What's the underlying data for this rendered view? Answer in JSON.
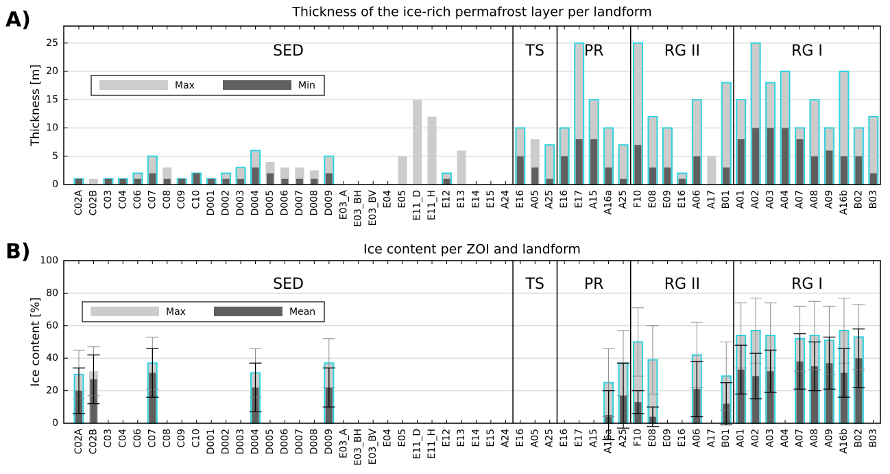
{
  "chart_data": [
    {
      "type": "bar",
      "panel_label": "A)",
      "title": "Thickness of the ice-rich permafrost layer per landform",
      "y_label": "Thickness [m]",
      "groups": [
        {
          "name": "SED",
          "categories": [
            "C02A",
            "C02B",
            "C03",
            "C04",
            "C06",
            "C07",
            "C08",
            "C09",
            "C10",
            "D001",
            "D002",
            "D003",
            "D004",
            "D005",
            "D006",
            "D007",
            "D008",
            "D009",
            "E03_A",
            "E03_BH",
            "E03_BV",
            "E04",
            "E05",
            "E11_D",
            "E11_H",
            "E12",
            "E13",
            "E14",
            "E15",
            "A24"
          ]
        },
        {
          "name": "TS",
          "categories": [
            "E16",
            "A05",
            "A25"
          ]
        },
        {
          "name": "PR",
          "categories": [
            "E16",
            "E17",
            "A15",
            "A16a",
            "A25"
          ]
        },
        {
          "name": "RG II",
          "categories": [
            "F10",
            "E08",
            "E09",
            "E16",
            "A06",
            "A17",
            "B01"
          ]
        },
        {
          "name": "RG I",
          "categories": [
            "A01",
            "A02",
            "A03",
            "A04",
            "A07",
            "A08",
            "A09",
            "A16b",
            "B02",
            "B03"
          ]
        }
      ],
      "series": [
        {
          "name": "Max",
          "color": "#cccccc",
          "values": [
            1,
            1,
            1,
            1,
            2,
            5,
            3,
            1,
            2,
            1,
            2,
            3,
            6,
            4,
            3,
            3,
            2.5,
            5,
            null,
            null,
            null,
            null,
            5,
            15,
            12,
            2,
            6,
            null,
            null,
            null,
            10,
            8,
            7,
            10,
            25,
            15,
            10,
            7,
            25,
            12,
            10,
            2,
            15,
            5,
            18,
            15,
            25,
            18,
            20,
            10,
            15,
            10,
            20,
            10,
            12
          ]
        },
        {
          "name": "Min",
          "color": "#5f5f5f",
          "values": [
            1,
            0,
            1,
            1,
            1,
            2,
            1,
            1,
            2,
            1,
            1,
            1,
            3,
            2,
            1,
            1,
            1,
            2,
            null,
            null,
            null,
            null,
            0,
            0,
            0,
            1,
            0,
            null,
            null,
            null,
            5,
            3,
            1,
            5,
            8,
            8,
            3,
            1,
            7,
            3,
            3,
            1,
            5,
            0,
            3,
            8,
            10,
            10,
            10,
            8,
            5,
            6,
            5,
            5,
            2
          ]
        }
      ],
      "outline_color": "#2fd3de",
      "outlined": [
        true,
        false,
        true,
        true,
        true,
        true,
        false,
        true,
        true,
        true,
        true,
        true,
        true,
        false,
        false,
        false,
        false,
        true,
        false,
        false,
        false,
        false,
        false,
        false,
        false,
        true,
        false,
        false,
        false,
        false,
        true,
        false,
        true,
        true,
        true,
        true,
        true,
        true,
        true,
        true,
        true,
        true,
        true,
        false,
        true,
        true,
        true,
        true,
        true,
        true,
        true,
        true,
        true,
        true,
        true
      ],
      "ylim": [
        0,
        28
      ],
      "yticks": [
        0,
        5,
        10,
        15,
        20,
        25
      ],
      "grid": true,
      "legend": "upper left"
    },
    {
      "type": "bar",
      "panel_label": "B)",
      "title": "Ice content per ZOI and landform",
      "y_label": "Ice content [%]",
      "groups": [
        {
          "name": "SED",
          "categories": [
            "C02A",
            "C02B",
            "C03",
            "C04",
            "C06",
            "C07",
            "C08",
            "C09",
            "C10",
            "D001",
            "D002",
            "D003",
            "D004",
            "D005",
            "D006",
            "D007",
            "D008",
            "D009",
            "E03_A",
            "E03_BH",
            "E03_BV",
            "E04",
            "E05",
            "E11_D",
            "E11_H",
            "E12",
            "E13",
            "E14",
            "E15",
            "A24"
          ]
        },
        {
          "name": "TS",
          "categories": [
            "E16",
            "A05",
            "A25"
          ]
        },
        {
          "name": "PR",
          "categories": [
            "E16",
            "E17",
            "A15",
            "A16a",
            "A25"
          ]
        },
        {
          "name": "RG II",
          "categories": [
            "F10",
            "E08",
            "E09",
            "E16",
            "A06",
            "A17",
            "B01"
          ]
        },
        {
          "name": "RG I",
          "categories": [
            "A01",
            "A02",
            "A03",
            "A04",
            "A07",
            "A08",
            "A09",
            "A16b",
            "B02",
            "B03"
          ]
        }
      ],
      "series": [
        {
          "name": "Max",
          "color": "#cccccc",
          "error_color": "#8c8c8c",
          "values": [
            30,
            32,
            null,
            null,
            null,
            37,
            null,
            null,
            null,
            null,
            null,
            null,
            31,
            null,
            null,
            null,
            null,
            37,
            null,
            null,
            null,
            null,
            null,
            null,
            null,
            null,
            null,
            null,
            null,
            null,
            null,
            null,
            null,
            null,
            null,
            null,
            25,
            37,
            50,
            39,
            null,
            null,
            42,
            null,
            29,
            54,
            57,
            54,
            null,
            52,
            54,
            51,
            57,
            53,
            null
          ],
          "errors": [
            15,
            15,
            null,
            null,
            null,
            16,
            null,
            null,
            null,
            null,
            null,
            null,
            15,
            null,
            null,
            null,
            null,
            15,
            null,
            null,
            null,
            null,
            null,
            null,
            null,
            null,
            null,
            null,
            null,
            null,
            null,
            null,
            null,
            null,
            null,
            null,
            21,
            20,
            21,
            21,
            null,
            null,
            20,
            null,
            21,
            20,
            20,
            20,
            null,
            20,
            21,
            21,
            20,
            20,
            null
          ]
        },
        {
          "name": "Mean",
          "color": "#5f5f5f",
          "error_color": "#000000",
          "values": [
            20,
            27,
            null,
            null,
            null,
            31,
            null,
            null,
            null,
            null,
            null,
            null,
            22,
            null,
            null,
            null,
            null,
            22,
            null,
            null,
            null,
            null,
            null,
            null,
            null,
            null,
            null,
            null,
            null,
            null,
            null,
            null,
            null,
            null,
            null,
            null,
            5,
            17,
            13,
            4,
            null,
            null,
            21,
            null,
            12,
            33,
            29,
            32,
            null,
            38,
            35,
            37,
            31,
            40,
            null
          ],
          "errors": [
            14,
            15,
            null,
            null,
            null,
            15,
            null,
            null,
            null,
            null,
            null,
            null,
            15,
            null,
            null,
            null,
            null,
            12,
            null,
            null,
            null,
            null,
            null,
            null,
            null,
            null,
            null,
            null,
            null,
            null,
            null,
            null,
            null,
            null,
            null,
            null,
            15,
            20,
            7,
            6,
            null,
            null,
            17,
            null,
            13,
            15,
            14,
            13,
            null,
            17,
            15,
            16,
            15,
            18,
            null
          ]
        }
      ],
      "outline_color": "#2fd3de",
      "outlined": [
        true,
        false,
        false,
        false,
        false,
        true,
        false,
        false,
        false,
        false,
        false,
        false,
        true,
        false,
        false,
        false,
        false,
        true,
        false,
        false,
        false,
        false,
        false,
        false,
        false,
        false,
        false,
        false,
        false,
        false,
        false,
        false,
        false,
        false,
        false,
        false,
        true,
        true,
        true,
        true,
        false,
        false,
        true,
        false,
        true,
        true,
        true,
        true,
        false,
        true,
        true,
        true,
        true,
        true,
        false
      ],
      "ylim": [
        0,
        100
      ],
      "yticks": [
        0,
        20,
        40,
        60,
        80,
        100
      ],
      "grid": true,
      "legend": "upper left"
    }
  ]
}
